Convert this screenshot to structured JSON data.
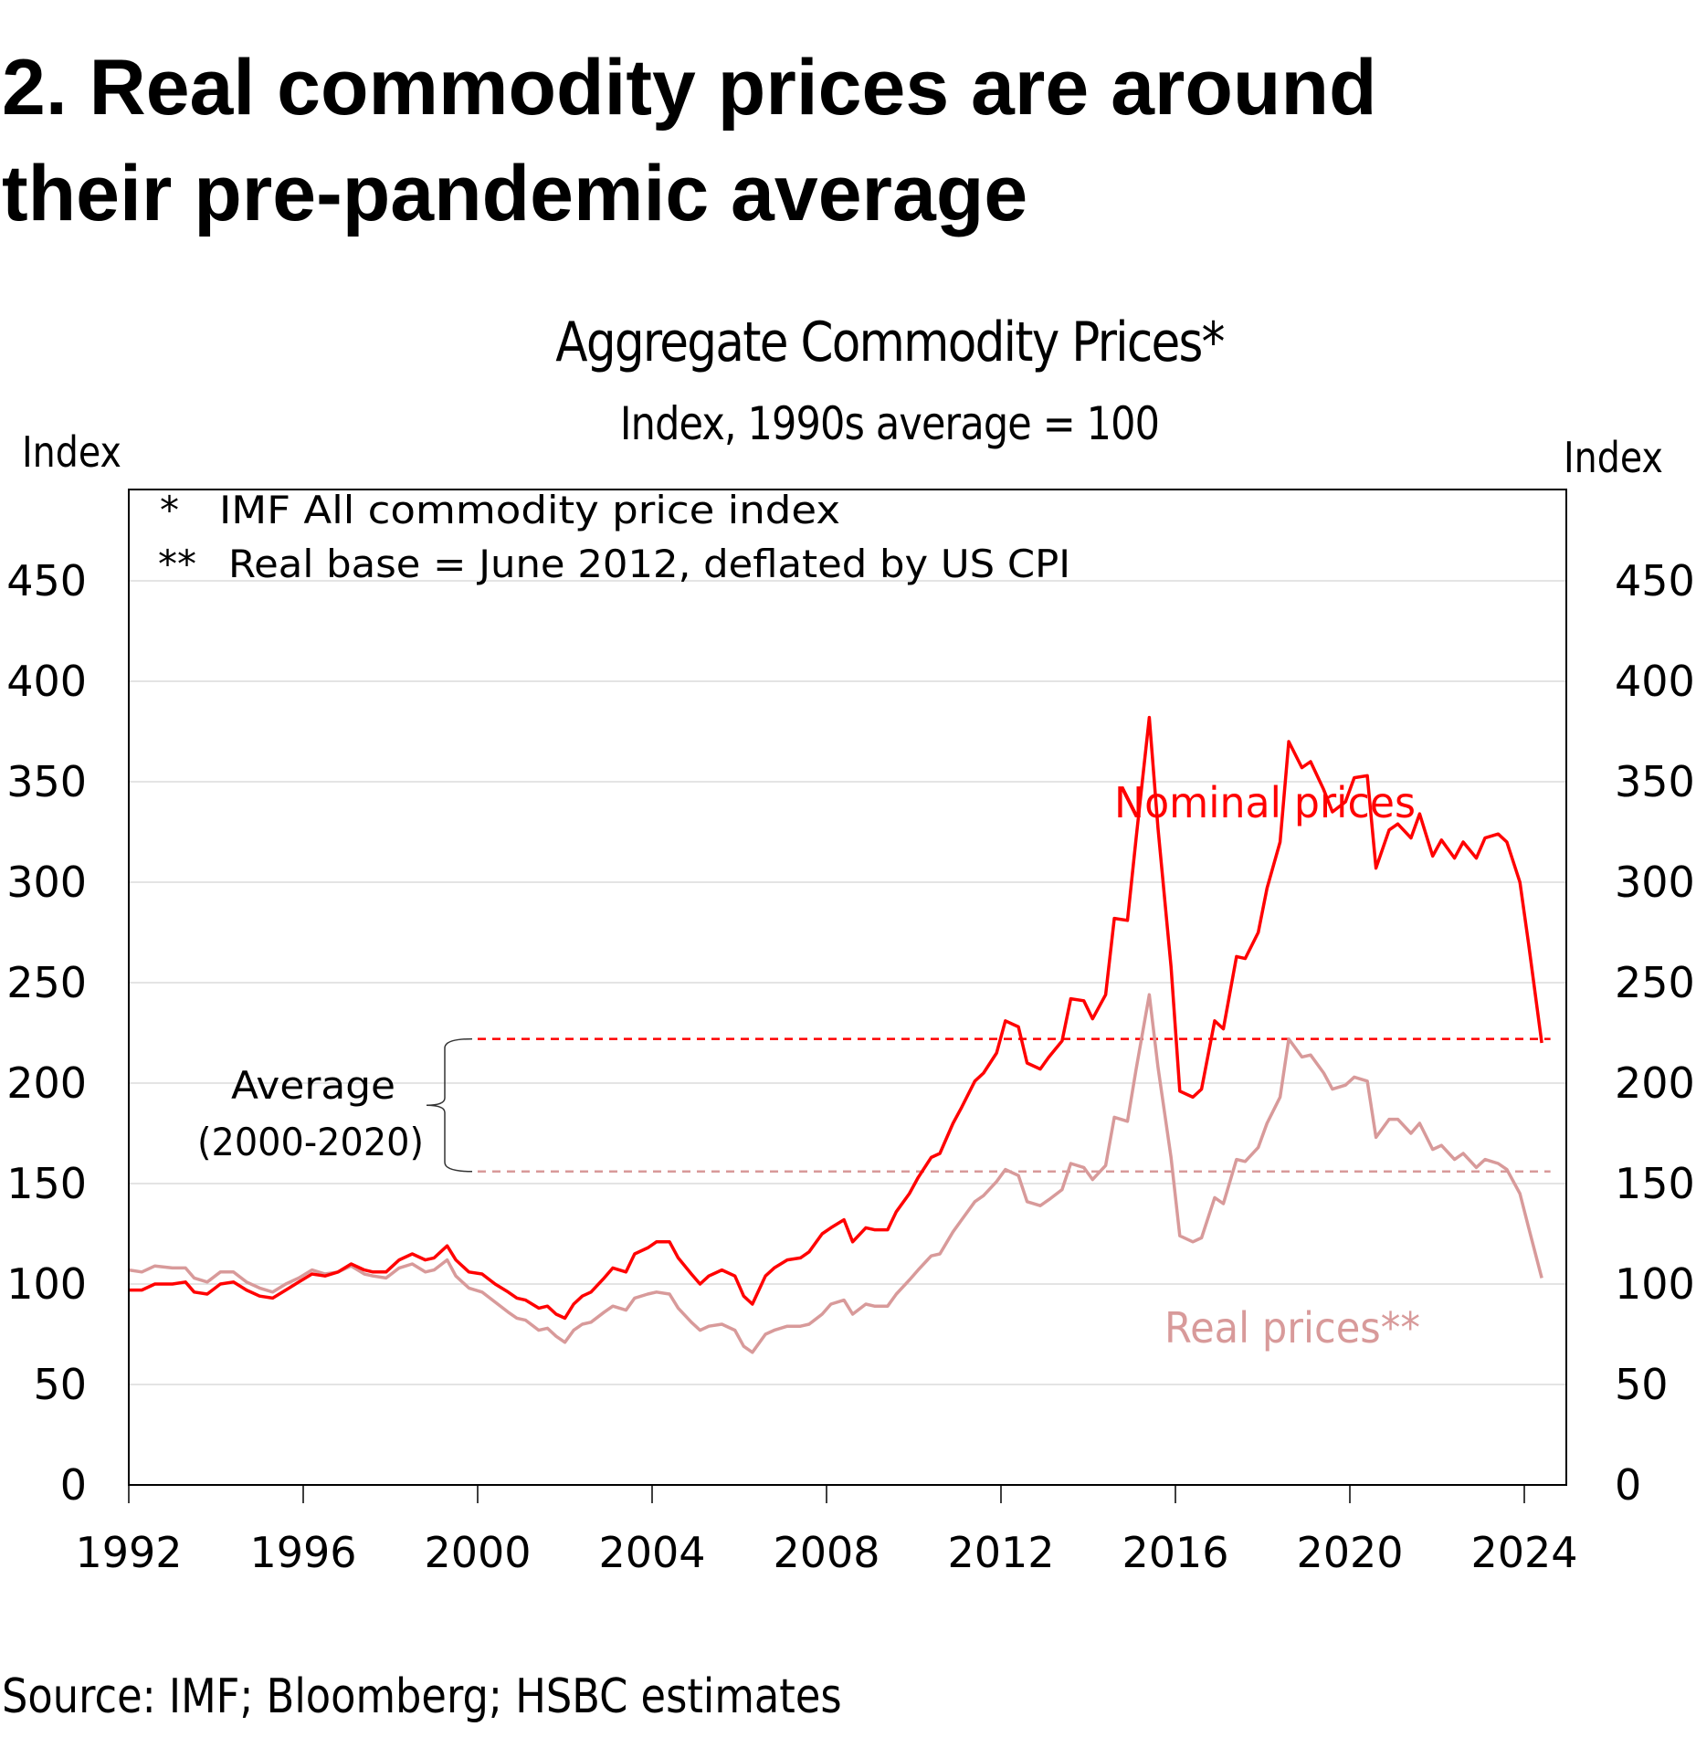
{
  "headline": {
    "line1": "2. Real commodity prices are around",
    "line2": "their pre-pandemic average"
  },
  "source": "Source: IMF; Bloomberg; HSBC estimates",
  "chart_data": {
    "type": "line",
    "title": "Aggregate Commodity Prices*",
    "subtitle": "Index, 1990s average = 100",
    "ylabel_left": "Index",
    "ylabel_right": "Index",
    "xlabel": "",
    "ylim": [
      0,
      450
    ],
    "xlim": [
      1992,
      2024.6
    ],
    "yticks": [
      0,
      50,
      100,
      150,
      200,
      250,
      300,
      350,
      400,
      450
    ],
    "xticks": [
      1992,
      1996,
      2000,
      2004,
      2008,
      2012,
      2016,
      2020,
      2024
    ],
    "xtick_labels": [
      "1992",
      "1996",
      "2000",
      "2004",
      "2008",
      "2012",
      "2016",
      "2020",
      "2024"
    ],
    "grid": true,
    "notes": [
      {
        "marker": "*",
        "text": "IMF All commodity price index"
      },
      {
        "marker": "**",
        "text": "Real base = June 2012, deflated by US CPI"
      }
    ],
    "average_annotation": {
      "label_line1": "Average",
      "label_line2": "(2000-2020)",
      "nominal_average": 222,
      "real_average": 156,
      "x_start": 2000,
      "x_end": 2024.6
    },
    "series": [
      {
        "name": "Nominal prices",
        "label": "Nominal prices",
        "color": "#ff0000",
        "points": [
          [
            1992.0,
            97
          ],
          [
            1992.3,
            97
          ],
          [
            1992.6,
            100
          ],
          [
            1993.0,
            100
          ],
          [
            1993.3,
            101
          ],
          [
            1993.5,
            96
          ],
          [
            1993.8,
            95
          ],
          [
            1994.1,
            100
          ],
          [
            1994.4,
            101
          ],
          [
            1994.7,
            97
          ],
          [
            1995.0,
            94
          ],
          [
            1995.3,
            93
          ],
          [
            1995.6,
            97
          ],
          [
            1995.9,
            101
          ],
          [
            1996.2,
            105
          ],
          [
            1996.5,
            104
          ],
          [
            1996.8,
            106
          ],
          [
            1997.1,
            110
          ],
          [
            1997.4,
            107
          ],
          [
            1997.6,
            106
          ],
          [
            1997.9,
            106
          ],
          [
            1998.2,
            112
          ],
          [
            1998.5,
            115
          ],
          [
            1998.8,
            112
          ],
          [
            1999.0,
            113
          ],
          [
            1999.3,
            119
          ],
          [
            1999.5,
            112
          ],
          [
            1999.8,
            106
          ],
          [
            2000.1,
            105
          ],
          [
            2000.4,
            100
          ],
          [
            2000.7,
            96
          ],
          [
            2000.9,
            93
          ],
          [
            2001.1,
            92
          ],
          [
            2001.4,
            88
          ],
          [
            2001.6,
            89
          ],
          [
            2001.8,
            85
          ],
          [
            2002.0,
            83
          ],
          [
            2002.2,
            90
          ],
          [
            2002.4,
            94
          ],
          [
            2002.6,
            96
          ],
          [
            2002.9,
            103
          ],
          [
            2003.1,
            108
          ],
          [
            2003.4,
            106
          ],
          [
            2003.6,
            115
          ],
          [
            2003.9,
            118
          ],
          [
            2004.1,
            121
          ],
          [
            2004.4,
            121
          ],
          [
            2004.6,
            113
          ],
          [
            2004.9,
            105
          ],
          [
            2005.1,
            100
          ],
          [
            2005.3,
            104
          ],
          [
            2005.6,
            107
          ],
          [
            2005.9,
            104
          ],
          [
            2006.1,
            94
          ],
          [
            2006.3,
            90
          ],
          [
            2006.6,
            104
          ],
          [
            2006.8,
            108
          ],
          [
            2007.1,
            112
          ],
          [
            2007.4,
            113
          ],
          [
            2007.6,
            116
          ],
          [
            2007.9,
            125
          ],
          [
            2008.1,
            128
          ],
          [
            2008.4,
            132
          ],
          [
            2008.6,
            121
          ],
          [
            2008.9,
            128
          ],
          [
            2009.1,
            127
          ],
          [
            2009.4,
            127
          ],
          [
            2009.6,
            136
          ],
          [
            2009.9,
            145
          ],
          [
            2010.1,
            153
          ],
          [
            2010.4,
            163
          ],
          [
            2010.6,
            165
          ],
          [
            2010.9,
            180
          ],
          [
            2011.1,
            188
          ],
          [
            2011.4,
            201
          ],
          [
            2011.6,
            205
          ],
          [
            2011.9,
            215
          ],
          [
            2012.1,
            231
          ],
          [
            2012.4,
            228
          ],
          [
            2012.6,
            210
          ],
          [
            2012.9,
            207
          ],
          [
            2013.1,
            213
          ],
          [
            2013.4,
            221
          ],
          [
            2013.6,
            242
          ],
          [
            2013.9,
            241
          ],
          [
            2014.1,
            232
          ],
          [
            2014.4,
            244
          ],
          [
            2014.6,
            282
          ],
          [
            2014.9,
            281
          ],
          [
            2015.1,
            322
          ],
          [
            2015.4,
            382
          ],
          [
            2015.6,
            327
          ],
          [
            2015.9,
            258
          ],
          [
            2016.1,
            196
          ],
          [
            2016.4,
            193
          ],
          [
            2016.6,
            197
          ],
          [
            2016.9,
            231
          ],
          [
            2017.1,
            227
          ],
          [
            2017.4,
            263
          ],
          [
            2017.6,
            262
          ],
          [
            2017.9,
            275
          ],
          [
            2018.1,
            297
          ],
          [
            2018.4,
            320
          ],
          [
            2018.6,
            370
          ],
          [
            2018.9,
            357
          ],
          [
            2019.1,
            360
          ],
          [
            2019.4,
            346
          ],
          [
            2019.6,
            335
          ],
          [
            2019.9,
            340
          ],
          [
            2020.1,
            352
          ],
          [
            2020.4,
            353
          ],
          [
            2020.6,
            307
          ],
          [
            2020.9,
            326
          ],
          [
            2021.1,
            329
          ],
          [
            2021.4,
            322
          ],
          [
            2021.6,
            334
          ],
          [
            2021.9,
            313
          ],
          [
            2022.1,
            321
          ],
          [
            2022.4,
            312
          ],
          [
            2022.6,
            320
          ],
          [
            2022.9,
            312
          ],
          [
            2023.1,
            322
          ],
          [
            2023.4,
            324
          ],
          [
            2023.6,
            320
          ],
          [
            2023.9,
            300
          ],
          [
            2024.1,
            269
          ],
          [
            2024.4,
            220
          ]
        ]
      },
      {
        "name": "Real prices**",
        "label": "Real prices**",
        "color": "#d89a9a",
        "points": []
      }
    ]
  }
}
